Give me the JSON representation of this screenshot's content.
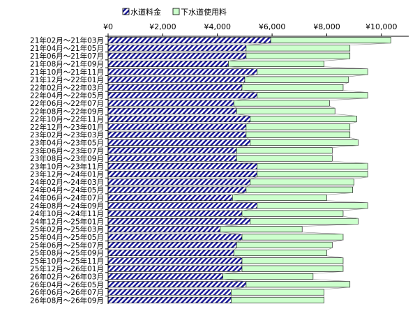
{
  "chart_data": {
    "type": "bar",
    "orientation": "horizontal",
    "stacked": true,
    "legend_position": "top",
    "grid": false,
    "xlim": [
      0,
      11000
    ],
    "xticks": [
      "¥0",
      "¥2,000",
      "¥4,000",
      "¥6,000",
      "¥8,000",
      "¥10,000"
    ],
    "xtick_values": [
      0,
      2000,
      4000,
      6000,
      8000,
      10000
    ],
    "colors": {
      "water": "#1a1a99",
      "sewer": "#ccffcc",
      "outline": "#000000"
    },
    "categories": [
      "21年02月～21年03月",
      "21年04月～21年05月",
      "21年06月～21年07月",
      "21年08月～21年09月",
      "21年10月～21年11月",
      "21年12月～22年01月",
      "22年02月～22年03月",
      "22年04月～22年05月",
      "22年06月～22年07月",
      "22年08月～22年09月",
      "22年10月～22年11月",
      "22年12月～23年01月",
      "23年02月～23年03月",
      "23年04月～23年05月",
      "23年06月～23年07月",
      "23年08月～23年09月",
      "23年10月～23年11月",
      "23年12月～24年01月",
      "24年02月～24年03月",
      "24年04月～24年05月",
      "24年06月～24年07月",
      "24年08月～24年09月",
      "24年10月～24年11月",
      "24年12月～25年01月",
      "25年02月～25年03月",
      "25年04月～25年05月",
      "25年06月～25年07月",
      "25年08月～25年09月",
      "25年10月～25年11月",
      "25年12月～26年01月",
      "26年02月～26年03月",
      "26年04月～26年05月",
      "26年06月～26年07月",
      "26年08月～26年09月"
    ],
    "series": [
      {
        "name": "水道料金",
        "values": [
          5950,
          5050,
          5050,
          4400,
          5450,
          5000,
          4900,
          5450,
          4600,
          4700,
          5200,
          5050,
          5050,
          5200,
          4700,
          4700,
          5450,
          5450,
          5200,
          5050,
          4550,
          5450,
          4900,
          5200,
          4100,
          4900,
          4700,
          4600,
          4900,
          4900,
          4200,
          5050,
          4500,
          4500
        ]
      },
      {
        "name": "下水道使用料",
        "values": [
          4400,
          3800,
          3800,
          3500,
          4050,
          3800,
          3700,
          4050,
          3500,
          3600,
          3900,
          3800,
          3800,
          3950,
          3500,
          3500,
          4050,
          4050,
          3800,
          3900,
          3450,
          4050,
          3700,
          3950,
          3000,
          3700,
          3500,
          3400,
          3700,
          3700,
          3300,
          3800,
          3400,
          3400
        ]
      }
    ]
  }
}
